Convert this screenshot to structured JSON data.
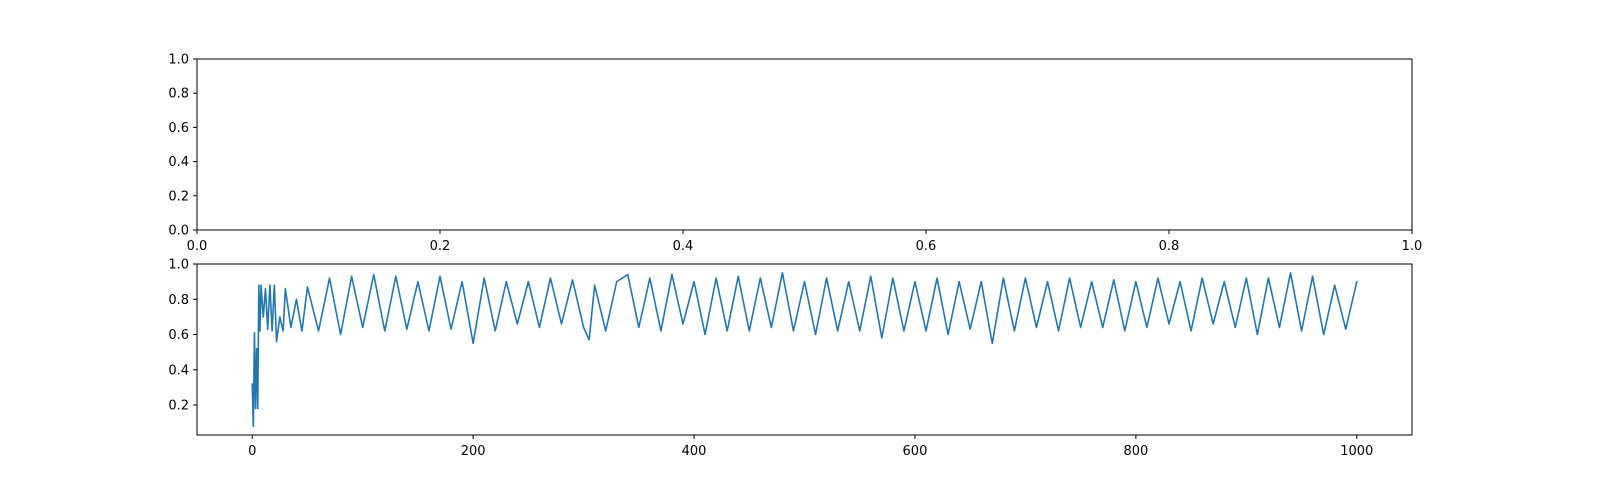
{
  "chart_data": [
    {
      "type": "line",
      "xlim": [
        0,
        1
      ],
      "ylim": [
        0,
        1
      ],
      "x_ticks": [
        0,
        0.2,
        0.4,
        0.6,
        0.8,
        1
      ],
      "x_tick_labels": [
        "0.0",
        "0.2",
        "0.4",
        "0.6",
        "0.8",
        "1.0"
      ],
      "y_ticks": [
        0,
        0.2,
        0.4,
        0.6,
        0.8,
        1
      ],
      "y_tick_labels": [
        "0.0",
        "0.2",
        "0.4",
        "0.6",
        "0.8",
        "1.0"
      ],
      "grid": false,
      "series": []
    },
    {
      "type": "line",
      "xlim": [
        -50,
        1050
      ],
      "ylim": [
        0.03,
        1.0
      ],
      "x_ticks": [
        0,
        200,
        400,
        600,
        800,
        1000
      ],
      "x_tick_labels": [
        "0",
        "200",
        "400",
        "600",
        "800",
        "1000"
      ],
      "y_ticks": [
        0.2,
        0.4,
        0.6,
        0.8,
        1.0
      ],
      "y_tick_labels": [
        "0.2",
        "0.4",
        "0.6",
        "0.8",
        "1.0"
      ],
      "grid": false,
      "series": [
        {
          "color": "#1f77b4",
          "x": [
            0,
            1,
            2,
            3,
            4,
            5,
            6,
            7,
            8,
            10,
            12,
            14,
            16,
            18,
            20,
            22,
            25,
            28,
            30,
            35,
            40,
            45,
            50,
            60,
            70,
            80,
            90,
            100,
            110,
            120,
            130,
            140,
            150,
            160,
            170,
            180,
            190,
            200,
            210,
            220,
            230,
            240,
            250,
            260,
            270,
            280,
            290,
            300,
            305,
            310,
            320,
            330,
            340,
            350,
            360,
            370,
            380,
            390,
            400,
            410,
            420,
            430,
            440,
            450,
            460,
            470,
            480,
            490,
            500,
            510,
            520,
            530,
            540,
            550,
            560,
            570,
            580,
            590,
            600,
            610,
            620,
            630,
            640,
            650,
            660,
            670,
            680,
            690,
            700,
            710,
            720,
            730,
            740,
            750,
            760,
            770,
            780,
            790,
            800,
            810,
            820,
            830,
            840,
            850,
            860,
            870,
            880,
            890,
            900,
            910,
            920,
            930,
            940,
            950,
            960,
            970,
            980,
            990,
            1000
          ],
          "y": [
            0.32,
            0.08,
            0.61,
            0.18,
            0.52,
            0.18,
            0.88,
            0.62,
            0.88,
            0.7,
            0.86,
            0.63,
            0.88,
            0.62,
            0.88,
            0.56,
            0.7,
            0.62,
            0.86,
            0.64,
            0.8,
            0.62,
            0.87,
            0.62,
            0.92,
            0.6,
            0.93,
            0.64,
            0.94,
            0.62,
            0.93,
            0.63,
            0.9,
            0.62,
            0.93,
            0.63,
            0.9,
            0.55,
            0.92,
            0.62,
            0.9,
            0.66,
            0.9,
            0.64,
            0.92,
            0.66,
            0.91,
            0.64,
            0.57,
            0.88,
            0.62,
            0.9,
            0.94,
            0.64,
            0.92,
            0.62,
            0.94,
            0.66,
            0.9,
            0.6,
            0.92,
            0.62,
            0.93,
            0.62,
            0.92,
            0.64,
            0.95,
            0.62,
            0.9,
            0.6,
            0.92,
            0.62,
            0.9,
            0.62,
            0.93,
            0.58,
            0.92,
            0.62,
            0.9,
            0.62,
            0.92,
            0.6,
            0.9,
            0.63,
            0.9,
            0.55,
            0.92,
            0.62,
            0.92,
            0.64,
            0.9,
            0.62,
            0.92,
            0.64,
            0.9,
            0.64,
            0.91,
            0.62,
            0.9,
            0.64,
            0.92,
            0.66,
            0.9,
            0.62,
            0.92,
            0.66,
            0.9,
            0.64,
            0.92,
            0.6,
            0.92,
            0.64,
            0.95,
            0.62,
            0.93,
            0.6,
            0.88,
            0.63,
            0.9
          ]
        }
      ]
    }
  ]
}
